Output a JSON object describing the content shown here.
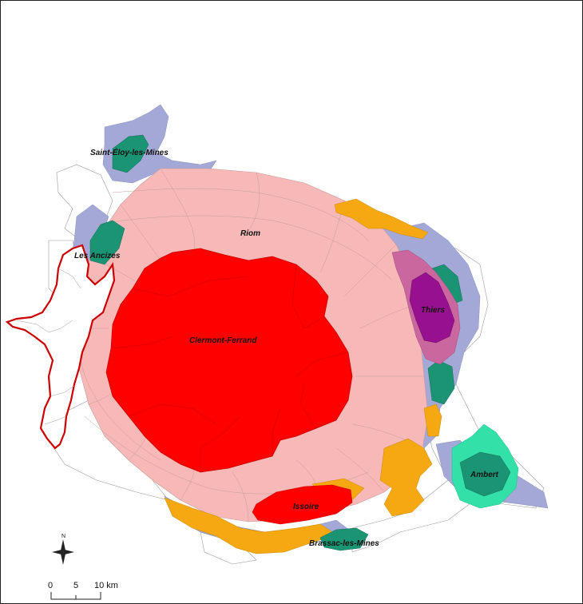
{
  "map": {
    "labels": {
      "saint_eloy": "Saint-Éloy-les-Mines",
      "les_ancizes": "Les Ancizes",
      "riom": "Riom",
      "clermont": "Clermont-Ferrand",
      "thiers": "Thiers",
      "ambert": "Ambert",
      "issoire": "Issoire",
      "brassac": "Brassac-les-Mines"
    },
    "north_arrow": {
      "letter": "N"
    },
    "scale_bar": {
      "tick_0": "0",
      "tick_5": "5",
      "tick_10": "10 km"
    },
    "colors": {
      "core": "#ff0000",
      "pink": "#f7b8b8",
      "lavender": "#a3a8d6",
      "teal": "#1a9473",
      "aqua": "#33e0a8",
      "orange": "#f5a811",
      "purple": "#96108f",
      "mauve": "#c9679e",
      "outline": "#cc0000"
    }
  }
}
